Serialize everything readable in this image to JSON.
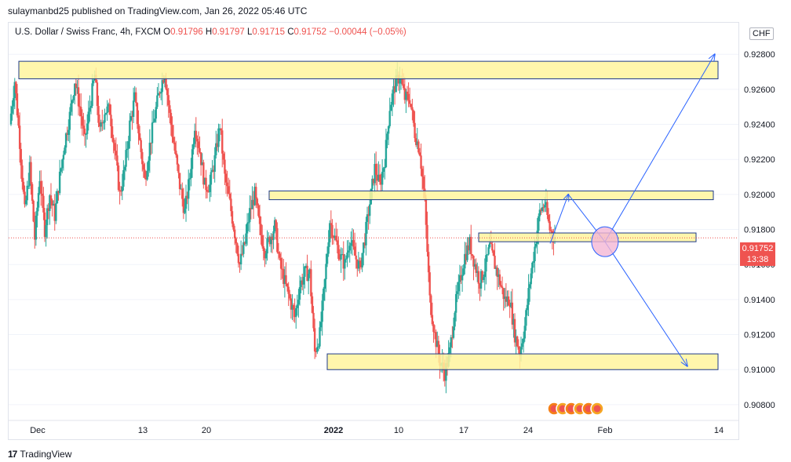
{
  "publisher": "sulaymanbd25 published on TradingView.com, Jan 26, 2022 05:46 UTC",
  "legend": {
    "symbol": "U.S. Dollar / Swiss Franc, 4h, FXCM",
    "o_label": "O",
    "o": "0.91796",
    "h_label": "H",
    "h": "0.91797",
    "l_label": "L",
    "l": "0.91715",
    "c_label": "C",
    "c": "0.91752",
    "change": "−0.00044 (−0.05%)"
  },
  "currency": "CHF",
  "price_label": {
    "price": "0.91752",
    "countdown": "13:38"
  },
  "footer": {
    "logo": "17",
    "brand": "TradingView"
  },
  "colors": {
    "up": "#26a69a",
    "down": "#ef5350",
    "zone_fill": "#fff59d",
    "zone_stroke": "#1e3a8a",
    "arrow": "#2962ff",
    "circle": "#e1a0d8"
  },
  "icons": [
    "tradingview-logo-icon",
    "event-flag-icon"
  ],
  "chart_data": {
    "type": "candlestick",
    "y_ticks": [
      "0.92800",
      "0.92600",
      "0.92400",
      "0.92200",
      "0.92000",
      "0.91800",
      "0.91600",
      "0.91400",
      "0.91200",
      "0.91000",
      "0.90800"
    ],
    "x_ticks": [
      "Dec",
      "13",
      "20",
      "2022",
      "10",
      "17",
      "24",
      "Feb",
      "14"
    ],
    "ylim": [
      0.9071,
      0.9298
    ],
    "current_price": 0.91752,
    "zones": [
      {
        "from": 0.9266,
        "to": 0.9276
      },
      {
        "from": 0.9197,
        "to": 0.9202
      },
      {
        "from": 0.9173,
        "to": 0.9178
      },
      {
        "from": 0.91,
        "to": 0.9109
      }
    ],
    "series": [
      {
        "segment": "late Nov – early Dec",
        "path": [
          0.924,
          0.9265,
          0.923,
          0.919,
          0.9215,
          0.9175,
          0.921,
          0.918,
          0.92,
          0.9188,
          0.921,
          0.923,
          0.9245,
          0.9265,
          0.925,
          0.923,
          0.925,
          0.9268,
          0.9235,
          0.9248
        ]
      },
      {
        "segment": "mid Dec",
        "path": [
          0.9248,
          0.9225,
          0.92,
          0.9215,
          0.924,
          0.9255,
          0.923,
          0.9208,
          0.9228,
          0.9245,
          0.926,
          0.927,
          0.9245,
          0.9225,
          0.9205,
          0.919,
          0.921,
          0.924,
          0.9225,
          0.9205
        ]
      },
      {
        "segment": "late Dec",
        "path": [
          0.9205,
          0.922,
          0.924,
          0.921,
          0.9195,
          0.9178,
          0.916,
          0.9172,
          0.919,
          0.92,
          0.918,
          0.9168,
          0.9175,
          0.9182,
          0.916,
          0.915,
          0.914,
          0.913,
          0.9148,
          0.9155
        ]
      },
      {
        "segment": "early Jan",
        "path": [
          0.9155,
          0.911,
          0.912,
          0.915,
          0.9185,
          0.9175,
          0.9165,
          0.916,
          0.9175,
          0.9165,
          0.9158,
          0.9175,
          0.9195,
          0.9215,
          0.9205,
          0.922,
          0.925,
          0.9262,
          0.9268,
          0.9255
        ]
      },
      {
        "segment": "mid Jan",
        "path": [
          0.9255,
          0.9235,
          0.9225,
          0.9195,
          0.914,
          0.912,
          0.9105,
          0.9098,
          0.911,
          0.9135,
          0.915,
          0.9165,
          0.9172,
          0.916,
          0.915,
          0.9158,
          0.917,
          0.916,
          0.915,
          0.914
        ]
      },
      {
        "segment": "late Jan",
        "path": [
          0.914,
          0.912,
          0.911,
          0.9125,
          0.915,
          0.917,
          0.919,
          0.9195,
          0.918,
          0.91752
        ]
      }
    ],
    "projections": [
      {
        "from": [
          0.9172,
          "Jan 26"
        ],
        "to": [
          0.92,
          "Jan 28"
        ]
      },
      {
        "from": [
          0.92,
          "Jan 28"
        ],
        "to": [
          0.9173,
          "Feb 1"
        ]
      },
      {
        "from": [
          0.9173,
          "Feb 1"
        ],
        "to": [
          0.928,
          "Feb 13"
        ]
      },
      {
        "from": [
          0.9173,
          "Feb 1"
        ],
        "to": [
          0.9102,
          "Feb 10"
        ]
      }
    ]
  }
}
